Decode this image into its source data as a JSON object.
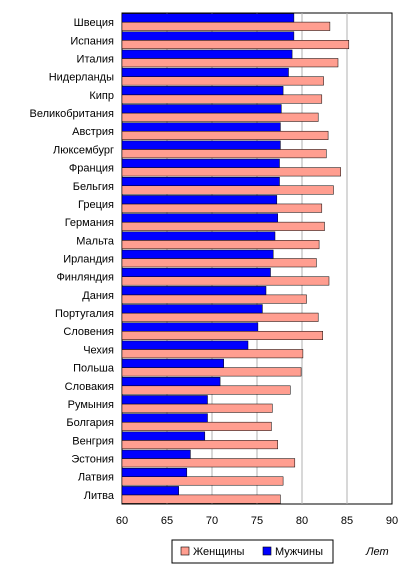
{
  "chart_data": {
    "type": "bar",
    "orientation": "horizontal",
    "categories": [
      "Швеция",
      "Испания",
      "Италия",
      "Нидерланды",
      "Кипр",
      "Великобритания",
      "Австрия",
      "Люксембург",
      "Франция",
      "Бельгия",
      "Греция",
      "Германия",
      "Мальта",
      "Ирландия",
      "Финляндия",
      "Дания",
      "Португалия",
      "Словения",
      "Чехия",
      "Польша",
      "Словакия",
      "Румыния",
      "Болгария",
      "Венгрия",
      "Эстония",
      "Латвия",
      "Литва"
    ],
    "series": [
      {
        "name": "Женщины",
        "color": "#ff9e90",
        "values": [
          83.1,
          85.2,
          84.0,
          82.4,
          82.2,
          81.8,
          82.9,
          82.7,
          84.3,
          83.5,
          82.2,
          82.5,
          81.9,
          81.6,
          83.0,
          80.5,
          81.8,
          82.3,
          80.1,
          79.9,
          78.7,
          76.7,
          76.6,
          77.3,
          79.2,
          77.9,
          77.6
        ]
      },
      {
        "name": "Мужчины",
        "color": "#0000ff",
        "values": [
          79.1,
          79.1,
          78.9,
          78.5,
          77.9,
          77.7,
          77.6,
          77.6,
          77.5,
          77.5,
          77.2,
          77.3,
          77.0,
          76.8,
          76.5,
          76.0,
          75.6,
          75.1,
          74.0,
          71.3,
          70.9,
          69.5,
          69.5,
          69.2,
          67.6,
          67.2,
          66.3
        ]
      }
    ],
    "x_ticks": [
      "60",
      "65",
      "70",
      "75",
      "80",
      "85",
      "90"
    ],
    "xlim": [
      60,
      90
    ],
    "unit_label": "Лет",
    "grid": true,
    "legend_position": "bottom"
  }
}
